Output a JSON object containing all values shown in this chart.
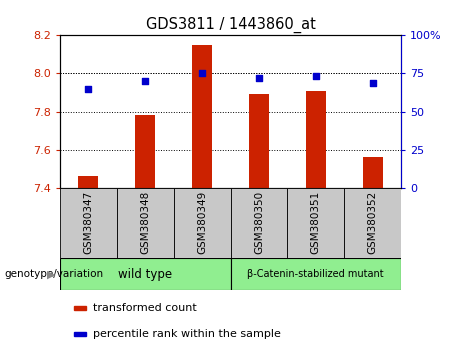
{
  "title": "GDS3811 / 1443860_at",
  "samples": [
    "GSM380347",
    "GSM380348",
    "GSM380349",
    "GSM380350",
    "GSM380351",
    "GSM380352"
  ],
  "bar_values": [
    7.46,
    7.78,
    8.15,
    7.89,
    7.91,
    7.56
  ],
  "percentile_values": [
    65,
    70,
    75,
    72,
    73,
    69
  ],
  "bar_color": "#cc2200",
  "dot_color": "#0000cc",
  "ylim_left": [
    7.4,
    8.2
  ],
  "ylim_right": [
    0,
    100
  ],
  "yticks_left": [
    7.4,
    7.6,
    7.8,
    8.0,
    8.2
  ],
  "yticks_right": [
    0,
    25,
    50,
    75,
    100
  ],
  "groups": [
    {
      "label": "wild type",
      "indices": [
        0,
        1,
        2
      ],
      "color": "#90ee90"
    },
    {
      "label": "β-Catenin-stabilized mutant",
      "indices": [
        3,
        4,
        5
      ],
      "color": "#90ee90"
    }
  ],
  "left_axis_color": "#cc2200",
  "right_axis_color": "#0000cc",
  "grid_color": "#000000",
  "legend_items": [
    {
      "label": "transformed count",
      "color": "#cc2200"
    },
    {
      "label": "percentile rank within the sample",
      "color": "#0000cc"
    }
  ],
  "genotype_label": "genotype/variation",
  "bar_width": 0.35,
  "sample_box_color": "#c8c8c8",
  "fig_bg_color": "#ffffff"
}
